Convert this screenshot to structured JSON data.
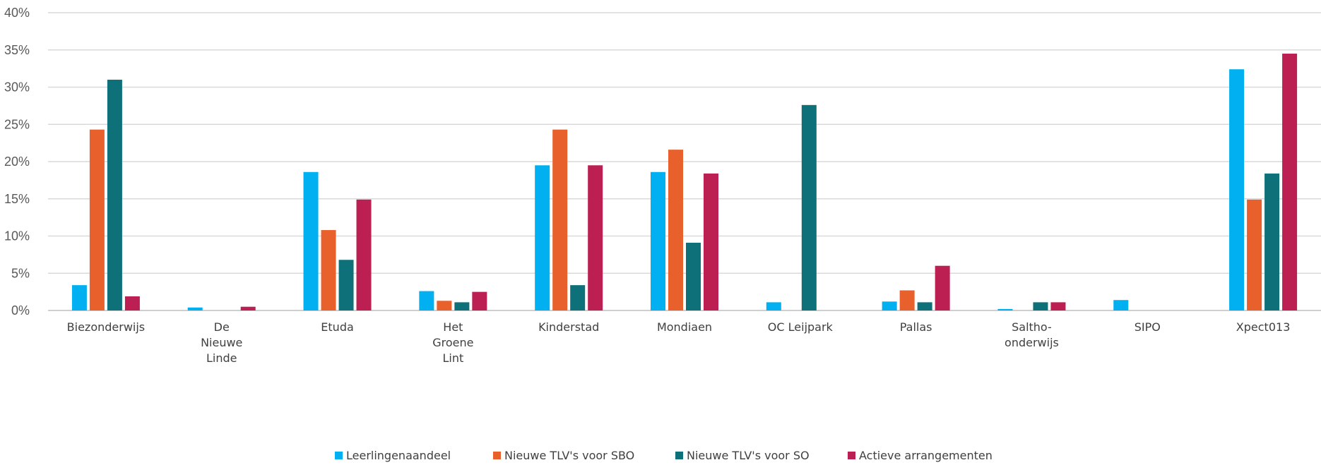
{
  "chart_data": {
    "type": "bar",
    "title": "",
    "xlabel": "",
    "ylabel": "",
    "ylim": [
      0,
      40
    ],
    "y_ticks": [
      "0%",
      "5%",
      "10%",
      "15%",
      "20%",
      "25%",
      "30%",
      "35%",
      "40%"
    ],
    "y_tick_values": [
      0,
      5,
      10,
      15,
      20,
      25,
      30,
      35,
      40
    ],
    "grid": true,
    "legend_position": "bottom",
    "categories": [
      [
        "Biezonderwijs"
      ],
      [
        "De",
        "Nieuwe",
        "Linde"
      ],
      [
        "Etuda"
      ],
      [
        "Het",
        "Groene",
        "Lint"
      ],
      [
        "Kinderstad"
      ],
      [
        "Mondiaen"
      ],
      [
        "OC Leijpark"
      ],
      [
        "Pallas"
      ],
      [
        "Saltho-",
        "onderwijs"
      ],
      [
        "SIPO"
      ],
      [
        "Xpect013"
      ]
    ],
    "series": [
      {
        "name": "Leerlingenaandeel",
        "color": "#00B0F0",
        "values": [
          3.4,
          0.4,
          18.6,
          2.6,
          19.5,
          18.6,
          1.1,
          1.2,
          0.2,
          1.4,
          32.4
        ]
      },
      {
        "name": "Nieuwe TLV's voor SBO",
        "color": "#E8612C",
        "values": [
          24.3,
          0,
          10.8,
          1.3,
          24.3,
          21.6,
          0,
          2.7,
          0,
          0,
          14.9
        ]
      },
      {
        "name": "Nieuwe TLV's voor SO",
        "color": "#0E7078",
        "values": [
          31.0,
          0,
          6.8,
          1.1,
          3.4,
          9.1,
          27.6,
          1.1,
          1.1,
          0,
          18.4
        ]
      },
      {
        "name": "Actieve arrangementen",
        "color": "#BC1F52",
        "values": [
          1.9,
          0.5,
          14.9,
          2.5,
          19.5,
          18.4,
          0,
          6.0,
          1.1,
          0,
          34.5
        ]
      }
    ]
  }
}
